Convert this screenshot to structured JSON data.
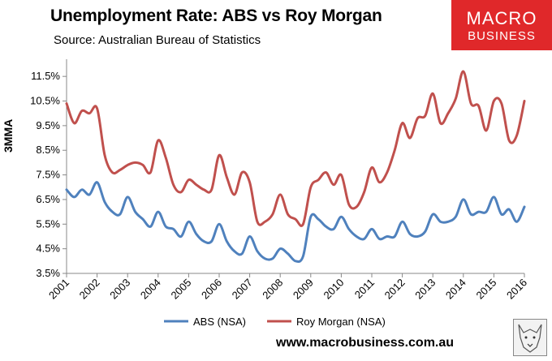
{
  "header": {
    "title": "Unemployment Rate: ABS vs Roy Morgan",
    "subtitle": "Source: Australian Bureau of Statistics",
    "logo_line1": "MACRO",
    "logo_line2": "BUSINESS"
  },
  "footer": {
    "url": "www.macrobusiness.com.au"
  },
  "colors": {
    "abs": "#4f81bd",
    "roy_morgan": "#c0504d",
    "logo": "#e0282a"
  },
  "chart_data": {
    "type": "line",
    "title": "Unemployment Rate: ABS vs Roy Morgan",
    "subtitle": "Source: Australian Bureau of Statistics",
    "xlabel": "",
    "ylabel": "3MMA",
    "ylim": [
      3.5,
      12
    ],
    "xlim": [
      2001.0,
      2016.0
    ],
    "grid": false,
    "legend_position": "bottom",
    "y_ticks": [
      "3.5%",
      "4.5%",
      "5.5%",
      "6.5%",
      "7.5%",
      "8.5%",
      "9.5%",
      "10.5%",
      "11.5%"
    ],
    "y_tick_values": [
      3.5,
      4.5,
      5.5,
      6.5,
      7.5,
      8.5,
      9.5,
      10.5,
      11.5
    ],
    "x_ticks": [
      "2001",
      "2002",
      "2003",
      "2004",
      "2005",
      "2006",
      "2007",
      "2008",
      "2009",
      "2010",
      "2011",
      "2012",
      "2013",
      "2014",
      "2015",
      "2016"
    ],
    "x_tick_values": [
      2001,
      2002,
      2003,
      2004,
      2005,
      2006,
      2007,
      2008,
      2009,
      2010,
      2011,
      2012,
      2013,
      2014,
      2015,
      2016
    ],
    "series": [
      {
        "name": "ABS (NSA)",
        "color": "#4f81bd",
        "x": [
          2001.0,
          2001.25,
          2001.5,
          2001.75,
          2002.0,
          2002.25,
          2002.5,
          2002.75,
          2003.0,
          2003.25,
          2003.5,
          2003.75,
          2004.0,
          2004.25,
          2004.5,
          2004.75,
          2005.0,
          2005.25,
          2005.5,
          2005.75,
          2006.0,
          2006.25,
          2006.5,
          2006.75,
          2007.0,
          2007.25,
          2007.5,
          2007.75,
          2008.0,
          2008.25,
          2008.5,
          2008.75,
          2009.0,
          2009.25,
          2009.5,
          2009.75,
          2010.0,
          2010.25,
          2010.5,
          2010.75,
          2011.0,
          2011.25,
          2011.5,
          2011.75,
          2012.0,
          2012.25,
          2012.5,
          2012.75,
          2013.0,
          2013.25,
          2013.5,
          2013.75,
          2014.0,
          2014.25,
          2014.5,
          2014.75,
          2015.0,
          2015.25,
          2015.5,
          2015.75,
          2016.0
        ],
        "values": [
          6.9,
          6.6,
          6.9,
          6.7,
          7.2,
          6.4,
          6.0,
          5.9,
          6.6,
          6.0,
          5.7,
          5.4,
          6.0,
          5.4,
          5.3,
          5.0,
          5.6,
          5.1,
          4.8,
          4.8,
          5.5,
          4.8,
          4.4,
          4.3,
          5.0,
          4.4,
          4.1,
          4.1,
          4.5,
          4.3,
          4.0,
          4.2,
          5.8,
          5.7,
          5.4,
          5.3,
          5.8,
          5.3,
          5.0,
          4.9,
          5.3,
          4.9,
          5.0,
          5.0,
          5.6,
          5.1,
          5.0,
          5.2,
          5.9,
          5.6,
          5.6,
          5.8,
          6.5,
          5.9,
          6.0,
          6.0,
          6.6,
          5.9,
          6.1,
          5.6,
          6.2
        ]
      },
      {
        "name": "Roy Morgan (NSA)",
        "color": "#c0504d",
        "x": [
          2001.0,
          2001.25,
          2001.5,
          2001.75,
          2002.0,
          2002.25,
          2002.5,
          2002.75,
          2003.0,
          2003.25,
          2003.5,
          2003.75,
          2004.0,
          2004.25,
          2004.5,
          2004.75,
          2005.0,
          2005.25,
          2005.5,
          2005.75,
          2006.0,
          2006.25,
          2006.5,
          2006.75,
          2007.0,
          2007.25,
          2007.5,
          2007.75,
          2008.0,
          2008.25,
          2008.5,
          2008.75,
          2009.0,
          2009.25,
          2009.5,
          2009.75,
          2010.0,
          2010.25,
          2010.5,
          2010.75,
          2011.0,
          2011.25,
          2011.5,
          2011.75,
          2012.0,
          2012.25,
          2012.5,
          2012.75,
          2013.0,
          2013.25,
          2013.5,
          2013.75,
          2014.0,
          2014.25,
          2014.5,
          2014.75,
          2015.0,
          2015.25,
          2015.5,
          2015.75,
          2016.0
        ],
        "values": [
          10.4,
          9.6,
          10.1,
          10.0,
          10.2,
          8.3,
          7.6,
          7.7,
          7.9,
          8.0,
          7.9,
          7.6,
          8.9,
          8.2,
          7.1,
          6.8,
          7.3,
          7.1,
          6.9,
          6.9,
          8.3,
          7.4,
          6.7,
          7.6,
          7.2,
          5.6,
          5.6,
          5.9,
          6.7,
          5.9,
          5.7,
          5.5,
          7.0,
          7.3,
          7.6,
          7.1,
          7.5,
          6.3,
          6.2,
          6.8,
          7.8,
          7.2,
          7.6,
          8.5,
          9.6,
          9.0,
          9.8,
          9.9,
          10.8,
          9.6,
          10.0,
          10.6,
          11.7,
          10.4,
          10.3,
          9.3,
          10.5,
          10.4,
          8.9,
          9.1,
          10.5
        ]
      }
    ]
  }
}
